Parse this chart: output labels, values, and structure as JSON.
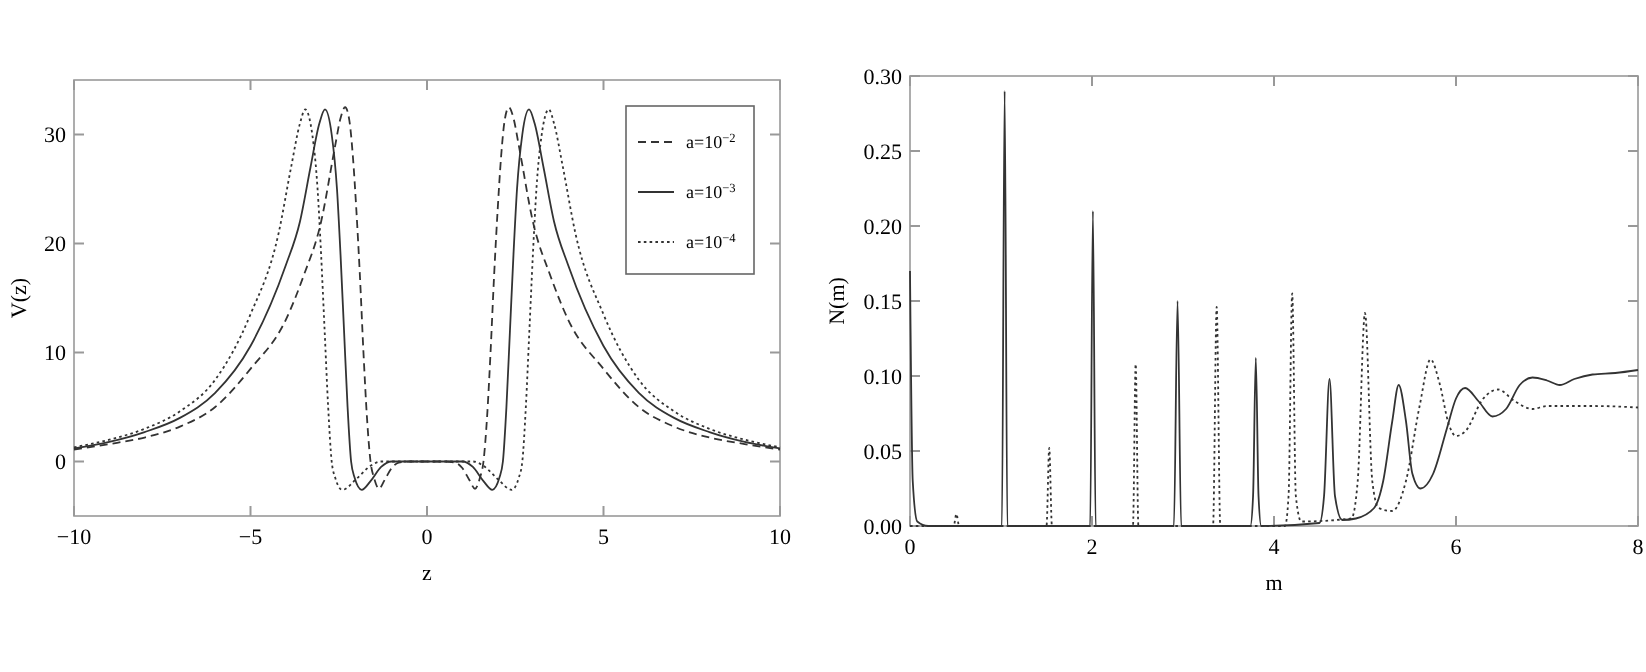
{
  "chart_data": [
    {
      "type": "line",
      "xlabel": "z",
      "ylabel": "V(z)",
      "xlim": [
        -10,
        10
      ],
      "ylim": [
        -5,
        35
      ],
      "xticks": [
        {
          "value": -10,
          "label": "−10"
        },
        {
          "value": -5,
          "label": "−5"
        },
        0,
        5,
        10
      ],
      "yticks": [
        0,
        10,
        20,
        30
      ],
      "grid": false,
      "legend": "top right",
      "series": [
        {
          "name": "a=10$^{−2}$",
          "color": "#333333",
          "line_style": "dashed",
          "x": [
            -10,
            -9,
            -8,
            -7,
            -6,
            -5,
            -4,
            -3.5,
            -3,
            -2.6,
            -2.45,
            -2.32,
            -2.2,
            -2.1,
            -2,
            -1.9,
            -1.8,
            -1.7,
            -1.6,
            -1.5,
            -1.36,
            -1.2,
            -1,
            -0.8,
            -0.5,
            0,
            0.5,
            0.8,
            1,
            1.2,
            1.36,
            1.5,
            1.6,
            1.7,
            1.8,
            1.9,
            2,
            2.1,
            2.2,
            2.32,
            2.45,
            2.6,
            3,
            3.5,
            4,
            5,
            6,
            7,
            8,
            9,
            10
          ],
          "values": [
            1.1,
            1.6,
            2.2,
            3.2,
            5,
            8.5,
            13,
            17,
            22,
            29,
            31.5,
            32.5,
            31.3,
            28,
            23,
            17,
            10,
            4,
            0,
            -1.5,
            -2.5,
            -1.7,
            -0.6,
            -0.1,
            0,
            0,
            0,
            -0.1,
            -0.6,
            -1.7,
            -2.5,
            -1.5,
            0,
            4,
            10,
            17,
            23,
            28,
            31.3,
            32.5,
            31.5,
            29,
            22,
            17,
            13,
            8.5,
            5,
            3.2,
            2.2,
            1.6,
            1.1
          ]
        },
        {
          "name": "a=10$^{−3}$",
          "color": "#333333",
          "line_style": "solid",
          "x": [
            -10,
            -9,
            -8,
            -7,
            -6,
            -5,
            -4,
            -3.6,
            -3.3,
            -3.05,
            -2.89,
            -2.7,
            -2.55,
            -2.45,
            -2.35,
            -2.25,
            -2.15,
            -2.05,
            -1.85,
            -1.6,
            -1.3,
            -1,
            0,
            1,
            1.3,
            1.6,
            1.85,
            2.05,
            2.15,
            2.25,
            2.35,
            2.45,
            2.55,
            2.7,
            2.89,
            3.05,
            3.3,
            3.6,
            4,
            5,
            6,
            7,
            8,
            9,
            10
          ],
          "values": [
            1.2,
            1.8,
            2.7,
            4,
            6.3,
            10.6,
            18,
            22,
            27,
            31,
            32.3,
            30,
            25,
            19,
            12,
            5,
            0,
            -1.5,
            -2.6,
            -1.8,
            -0.5,
            0,
            0,
            0,
            -0.5,
            -1.8,
            -2.6,
            -1.5,
            0,
            5,
            12,
            19,
            25,
            30,
            32.3,
            31,
            27,
            22,
            18,
            10.6,
            6.3,
            4,
            2.7,
            1.8,
            1.2
          ]
        },
        {
          "name": "a=10$^{−4}$",
          "color": "#333333",
          "line_style": "dotted",
          "x": [
            -10,
            -9,
            -8,
            -7,
            -6,
            -5,
            -4.2,
            -3.85,
            -3.6,
            -3.45,
            -3.25,
            -3.1,
            -3,
            -2.9,
            -2.8,
            -2.7,
            -2.6,
            -2.4,
            -2,
            -1.6,
            -1.3,
            0,
            1.3,
            1.6,
            2,
            2.4,
            2.6,
            2.7,
            2.8,
            2.9,
            3,
            3.1,
            3.25,
            3.45,
            3.6,
            3.85,
            4.2,
            5,
            6,
            7,
            8,
            9,
            10
          ],
          "values": [
            1.3,
            2,
            3,
            4.6,
            7.5,
            13.5,
            21,
            27,
            31,
            32.3,
            30,
            25,
            19,
            12,
            5,
            0,
            -1.5,
            -2.6,
            -1.6,
            -0.4,
            0,
            0,
            0,
            -0.4,
            -1.6,
            -2.6,
            -1.5,
            0,
            5,
            12,
            19,
            25,
            30,
            32.3,
            31,
            27,
            21,
            13.5,
            7.5,
            4.6,
            3,
            2,
            1.3
          ]
        }
      ]
    },
    {
      "type": "line",
      "xlabel": "m",
      "ylabel": "N(m)",
      "xlim": [
        0,
        8
      ],
      "ylim": [
        0,
        0.3
      ],
      "xticks": [
        0,
        2,
        4,
        6,
        8
      ],
      "yticks": [
        {
          "value": 0,
          "label": "0.00"
        },
        {
          "value": 0.05,
          "label": "0.05"
        },
        {
          "value": 0.1,
          "label": "0.10"
        },
        {
          "value": 0.15,
          "label": "0.15"
        },
        {
          "value": 0.2,
          "label": "0.20"
        },
        {
          "value": 0.25,
          "label": "0.25"
        },
        {
          "value": 0.3,
          "label": "0.30"
        }
      ],
      "grid": false,
      "legend": false,
      "series": [
        {
          "color": "#333333",
          "line_style": "solid",
          "x": [
            0,
            0.03,
            0.08,
            0.2,
            1.01,
            1.04,
            1.07,
            1.98,
            2.01,
            2.04,
            2.9,
            2.94,
            2.98,
            3.74,
            3.77,
            3.8,
            3.83,
            3.86,
            4.5,
            4.55,
            4.61,
            4.67,
            4.75,
            4.9,
            5.1,
            5.2,
            5.3,
            5.37,
            5.45,
            5.52,
            5.61,
            5.75,
            5.9,
            6,
            6.1,
            6.25,
            6.4,
            6.55,
            6.7,
            6.84,
            7,
            7.14,
            7.3,
            7.5,
            7.75,
            8
          ],
          "values": [
            0.17,
            0.03,
            0.003,
            0,
            0,
            0.29,
            0,
            0,
            0.21,
            0,
            0,
            0.15,
            0,
            0,
            0.02,
            0.112,
            0.02,
            0,
            0.002,
            0.02,
            0.098,
            0.02,
            0.004,
            0.005,
            0.012,
            0.03,
            0.07,
            0.094,
            0.07,
            0.035,
            0.025,
            0.035,
            0.065,
            0.085,
            0.092,
            0.083,
            0.073,
            0.078,
            0.094,
            0.099,
            0.097,
            0.094,
            0.098,
            0.101,
            0.102,
            0.104
          ]
        },
        {
          "color": "#333333",
          "line_style": "dotted",
          "x": [
            0,
            0.48,
            0.51,
            0.54,
            1.5,
            1.53,
            1.56,
            2.45,
            2.48,
            2.51,
            3.33,
            3.37,
            3.41,
            4.12,
            4.16,
            4.2,
            4.24,
            4.3,
            4.85,
            4.92,
            5,
            5.08,
            5.15,
            5.3,
            5.45,
            5.6,
            5.72,
            5.82,
            5.92,
            6,
            6.1,
            6.3,
            6.46,
            6.65,
            6.84,
            7,
            7.2,
            7.5,
            8
          ],
          "values": [
            0,
            0,
            0.008,
            0,
            0,
            0.052,
            0,
            0,
            0.108,
            0,
            0,
            0.146,
            0,
            0,
            0.02,
            0.155,
            0.02,
            0.003,
            0.005,
            0.03,
            0.142,
            0.03,
            0.012,
            0.01,
            0.03,
            0.08,
            0.111,
            0.095,
            0.068,
            0.06,
            0.063,
            0.085,
            0.091,
            0.083,
            0.078,
            0.08,
            0.08,
            0.08,
            0.079
          ]
        }
      ]
    }
  ]
}
